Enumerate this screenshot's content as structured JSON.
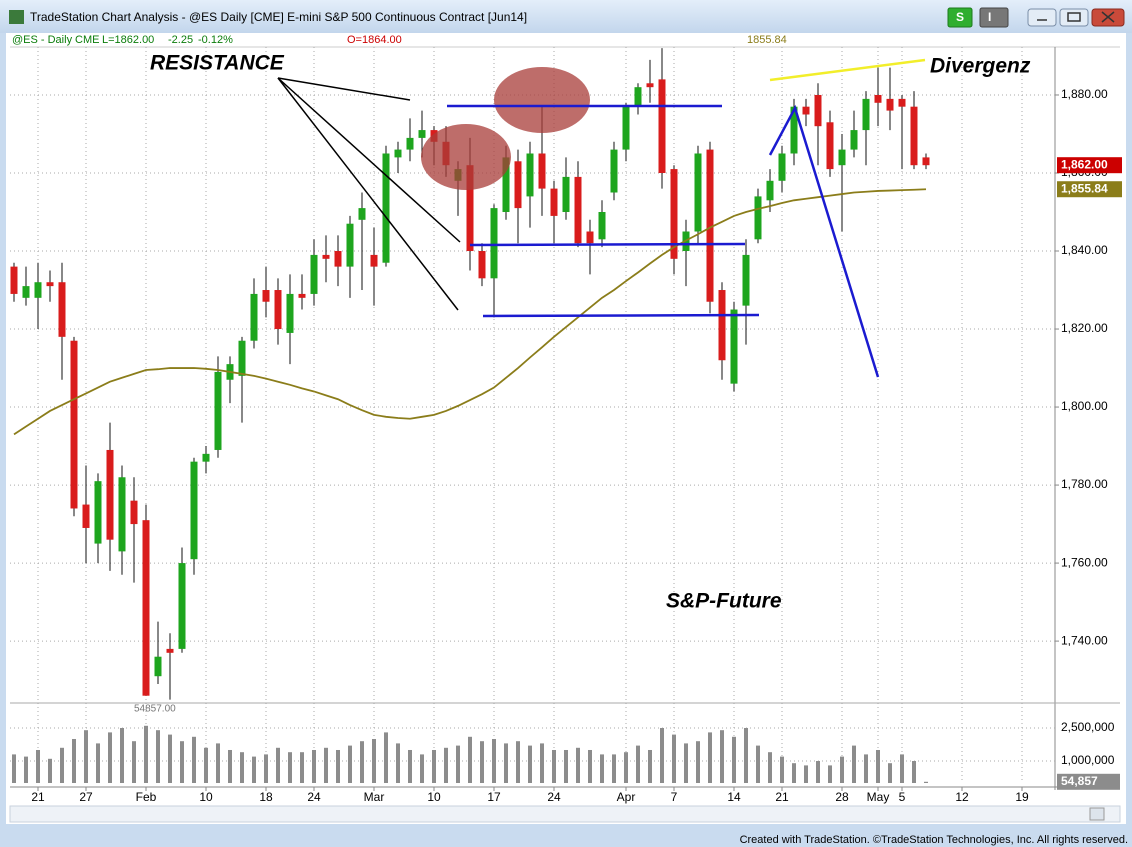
{
  "chart_data": {
    "type": "candlestick",
    "title": "TradeStation Chart Analysis - @ES Daily [CME] E-mini S&P 500 Continuous Contract [Jun14]",
    "buttons": [
      "S",
      "I"
    ],
    "info": {
      "symbol": "@ES - Daily",
      "exchange": "CME",
      "last": "L=1862.00",
      "change": "-2.25",
      "percent": "-0.12%",
      "open": "O=1864.00",
      "average": "1855.84"
    },
    "footer": "Created with TradeStation. ©TradeStation Technologies, Inc. All rights reserved.",
    "annotations": [
      "RESISTANCE",
      "Divergenz",
      "S&P-Future"
    ],
    "low_label": "54857.00",
    "categories": [
      null,
      null,
      "21",
      null,
      null,
      null,
      "27",
      null,
      null,
      null,
      null,
      "Feb",
      null,
      null,
      null,
      null,
      "10",
      null,
      null,
      null,
      null,
      "18",
      null,
      null,
      null,
      "24",
      null,
      null,
      null,
      null,
      "Mar",
      null,
      null,
      null,
      null,
      "10",
      null,
      null,
      null,
      null,
      "17",
      null,
      null,
      null,
      null,
      "24",
      null,
      null,
      null,
      null,
      null,
      "Apr",
      null,
      null,
      null,
      "7",
      null,
      null,
      null,
      null,
      "14",
      null,
      null,
      null,
      "21",
      null,
      null,
      null,
      null,
      "28",
      null,
      null,
      "May",
      null,
      "5",
      null,
      null,
      null,
      null,
      "12",
      null,
      null,
      null,
      null,
      "19"
    ],
    "open": [
      1836,
      1828,
      1828,
      1832,
      1832,
      1817,
      1775,
      1765,
      1789,
      1763,
      1776,
      1771,
      1731,
      1738,
      1738,
      1761,
      1786,
      1789,
      1807,
      1808,
      1817,
      1830,
      1830,
      1819,
      1829,
      1829,
      1839,
      1840,
      1836,
      1848,
      1839,
      1837,
      1864,
      1866,
      1869,
      1871,
      1868,
      1858,
      1862,
      1840,
      1833,
      1850,
      1863,
      1854,
      1865,
      1856,
      1850,
      1859,
      1845,
      1843,
      1855,
      1866,
      1877,
      1883,
      1884,
      1861,
      1840,
      1845,
      1866,
      1830,
      1806,
      1826,
      1843,
      1853,
      1858,
      1865,
      1877,
      1880,
      1873,
      1862,
      1866,
      1871,
      1880,
      1879,
      1879,
      1877,
      1864,
      null,
      null,
      null,
      null,
      null,
      null,
      null,
      null
    ],
    "high": [
      1837,
      1836,
      1837,
      1835,
      1837,
      1818,
      1785,
      1783,
      1796,
      1785,
      1782,
      1775,
      1745,
      1742,
      1764,
      1787,
      1790,
      1813,
      1813,
      1818,
      1833,
      1836,
      1833,
      1834,
      1834,
      1843,
      1844,
      1844,
      1849,
      1855,
      1846,
      1867,
      1868,
      1874,
      1876,
      1872,
      1872,
      1863,
      1869,
      1842,
      1852,
      1867,
      1866,
      1868,
      1877,
      1858,
      1864,
      1863,
      1848,
      1853,
      1868,
      1878,
      1883,
      1889,
      1892,
      1862,
      1848,
      1867,
      1868,
      1832,
      1827,
      1843,
      1856,
      1861,
      1867,
      1879,
      1879,
      1883,
      1876,
      1870,
      1876,
      1881,
      1887,
      1887,
      1880,
      1881,
      1865,
      null,
      null,
      null,
      null,
      null,
      null,
      null,
      null
    ],
    "low": [
      1827,
      1826,
      1820,
      1827,
      1807,
      1772,
      1760,
      1760,
      1758,
      1757,
      1755,
      1726,
      1729,
      1725,
      1737,
      1757,
      1783,
      1787,
      1801,
      1796,
      1815,
      1823,
      1816,
      1811,
      1825,
      1826,
      1832,
      1831,
      1828,
      1830,
      1826,
      1836,
      1860,
      1863,
      1864,
      1862,
      1859,
      1849,
      1835,
      1831,
      1823,
      1848,
      1842,
      1846,
      1849,
      1842,
      1848,
      1841,
      1834,
      1841,
      1853,
      1863,
      1875,
      1878,
      1856,
      1834,
      1831,
      1842,
      1824,
      1807,
      1804,
      1816,
      1842,
      1850,
      1855,
      1862,
      1872,
      1862,
      1859,
      1845,
      1864,
      1862,
      1872,
      1871,
      1861,
      1861,
      1861,
      null,
      null,
      null,
      null,
      null,
      null,
      null,
      null
    ],
    "close": [
      1829,
      1831,
      1832,
      1831,
      1818,
      1774,
      1769,
      1781,
      1766,
      1782,
      1770,
      1726,
      1736,
      1737,
      1760,
      1786,
      1788,
      1809,
      1811,
      1817,
      1829,
      1827,
      1820,
      1829,
      1828,
      1839,
      1838,
      1836,
      1847,
      1851,
      1836,
      1865,
      1866,
      1869,
      1871,
      1868,
      1862,
      1861,
      1840,
      1833,
      1851,
      1864,
      1851,
      1865,
      1856,
      1849,
      1859,
      1842,
      1842,
      1850,
      1866,
      1877,
      1882,
      1882,
      1860,
      1838,
      1845,
      1865,
      1827,
      1812,
      1825,
      1839,
      1854,
      1858,
      1865,
      1877,
      1875,
      1872,
      1861,
      1866,
      1871,
      1879,
      1878,
      1876,
      1877,
      1862,
      1862,
      null,
      null,
      null,
      null,
      null,
      null,
      null,
      null
    ],
    "up_color": "#1ea51e",
    "down_color": "#d91c1c",
    "moving_average": {
      "color": "#8b7d1a",
      "values": [
        1793,
        1795,
        1797,
        1799,
        1800.5,
        1802,
        1803.5,
        1805,
        1806.5,
        1807.5,
        1808.5,
        1809.5,
        1809.7,
        1810,
        1810,
        1810,
        1809.8,
        1809.5,
        1809,
        1808.5,
        1808,
        1807.3,
        1806.5,
        1805.7,
        1804.8,
        1804,
        1803,
        1802,
        1800.5,
        1799.2,
        1798,
        1797.5,
        1797.2,
        1797,
        1797.5,
        1798,
        1799,
        1800.3,
        1801.8,
        1803.3,
        1805,
        1807.5,
        1810,
        1812.7,
        1815.3,
        1818,
        1820.5,
        1823,
        1825.5,
        1828,
        1830,
        1832.3,
        1834.5,
        1836.8,
        1839,
        1841,
        1842.7,
        1844.3,
        1846,
        1847.5,
        1849,
        1850,
        1850.8,
        1851.5,
        1852.3,
        1853,
        1853.4,
        1853.8,
        1854.2,
        1854.6,
        1855,
        1855.2,
        1855.4,
        1855.5,
        1855.6,
        1855.7,
        1855.84,
        null,
        null,
        null,
        null,
        null,
        null,
        null,
        null
      ]
    },
    "ylim": [
      1724.9,
      1892.3
    ],
    "yticks": [
      {
        "value": 1740,
        "label": "1,740.00"
      },
      {
        "value": 1760,
        "label": "1,760.00"
      },
      {
        "value": 1780,
        "label": "1,780.00"
      },
      {
        "value": 1800,
        "label": "1,800.00"
      },
      {
        "value": 1820,
        "label": "1,820.00"
      },
      {
        "value": 1840,
        "label": "1,840.00"
      },
      {
        "value": 1860,
        "label": "1,860.00"
      },
      {
        "value": 1880,
        "label": "1,880.00"
      }
    ],
    "grid": true,
    "price_tags": [
      {
        "value": 1862,
        "label": "1,862.00",
        "color": "#cc0000"
      },
      {
        "value": 1855.84,
        "label": "1,855.84",
        "color": "#8b7d1a"
      }
    ],
    "volume": {
      "color": "#8c8c8c",
      "ylim": [
        0,
        3545000
      ],
      "yticks": [
        {
          "value": 2500000,
          "label": "2,500,000"
        },
        {
          "value": 1000000,
          "label": "1,000,000"
        }
      ],
      "last_label": {
        "value": 54857,
        "label": "54,857"
      },
      "values": [
        1300000,
        1200000,
        1500000,
        1100000,
        1600000,
        2000000,
        2400000,
        1800000,
        2300000,
        2500000,
        1900000,
        2600000,
        2400000,
        2200000,
        1900000,
        2100000,
        1600000,
        1800000,
        1500000,
        1400000,
        1200000,
        1300000,
        1600000,
        1400000,
        1400000,
        1500000,
        1600000,
        1500000,
        1700000,
        1900000,
        2000000,
        2300000,
        1800000,
        1500000,
        1300000,
        1500000,
        1600000,
        1700000,
        2100000,
        1900000,
        2000000,
        1800000,
        1900000,
        1700000,
        1800000,
        1500000,
        1500000,
        1600000,
        1500000,
        1300000,
        1300000,
        1400000,
        1700000,
        1500000,
        2500000,
        2200000,
        1800000,
        1900000,
        2300000,
        2400000,
        2100000,
        2500000,
        1700000,
        1400000,
        1200000,
        900000,
        800000,
        1000000,
        800000,
        1200000,
        1700000,
        1300000,
        1500000,
        900000,
        1300000,
        1000000,
        54857,
        null,
        null,
        null,
        null,
        null,
        null,
        null,
        null
      ]
    }
  }
}
